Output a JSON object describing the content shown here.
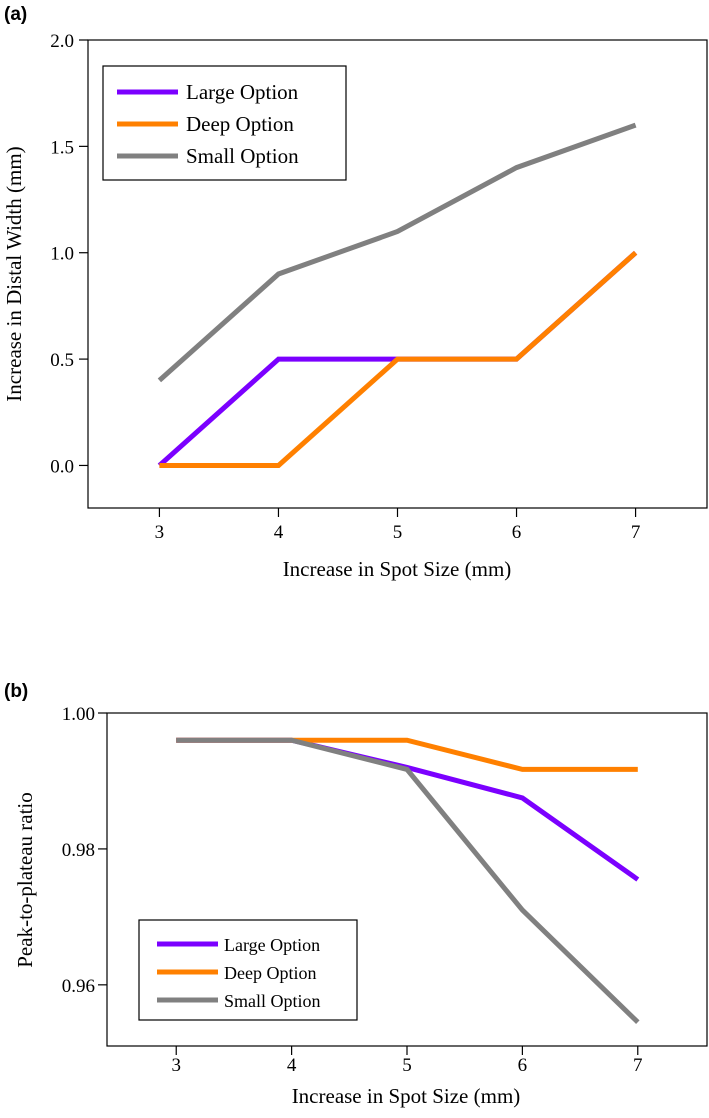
{
  "chart_data": [
    {
      "panel_label": "(a)",
      "type": "line",
      "xlabel": "Increase in Spot Size (mm)",
      "ylabel": "Increase in Distal Width (mm)",
      "x": [
        3,
        4,
        5,
        6,
        7
      ],
      "xlim": [
        2.4,
        7.6
      ],
      "ylim": [
        -0.2,
        2.0
      ],
      "xticks": [
        3,
        4,
        5,
        6,
        7
      ],
      "yticks": [
        0.0,
        0.5,
        1.0,
        1.5,
        2.0
      ],
      "ytick_labels": [
        "0.0",
        "0.5",
        "1.0",
        "1.5",
        "2.0"
      ],
      "legend_position": "top-left",
      "series": [
        {
          "name": "Large Option",
          "color": "#7B00FF",
          "values": [
            0.0,
            0.5,
            0.5,
            0.5,
            1.0
          ]
        },
        {
          "name": "Deep Option",
          "color": "#FF8000",
          "values": [
            0.0,
            0.0,
            0.5,
            0.5,
            1.0
          ]
        },
        {
          "name": "Small Option",
          "color": "#808080",
          "values": [
            0.4,
            0.9,
            1.1,
            1.4,
            1.6
          ]
        }
      ]
    },
    {
      "panel_label": "(b)",
      "type": "line",
      "xlabel": "Increase in Spot Size (mm)",
      "ylabel": "Peak-to-plateau ratio",
      "x": [
        3,
        4,
        5,
        6,
        7
      ],
      "xlim": [
        2.4,
        7.6
      ],
      "ylim": [
        0.951,
        1.0
      ],
      "xticks": [
        3,
        4,
        5,
        6,
        7
      ],
      "yticks": [
        0.96,
        0.98,
        1.0
      ],
      "ytick_labels": [
        "0.96",
        "0.98",
        "1.00"
      ],
      "legend_position": "bottom-left",
      "series": [
        {
          "name": "Large Option",
          "color": "#7B00FF",
          "values": [
            0.996,
            0.996,
            0.992,
            0.9875,
            0.9755
          ]
        },
        {
          "name": "Deep Option",
          "color": "#FF8000",
          "values": [
            0.996,
            0.996,
            0.996,
            0.9917,
            0.9917
          ]
        },
        {
          "name": "Small Option",
          "color": "#808080",
          "values": [
            0.996,
            0.996,
            0.9917,
            0.971,
            0.9545
          ]
        }
      ]
    }
  ]
}
